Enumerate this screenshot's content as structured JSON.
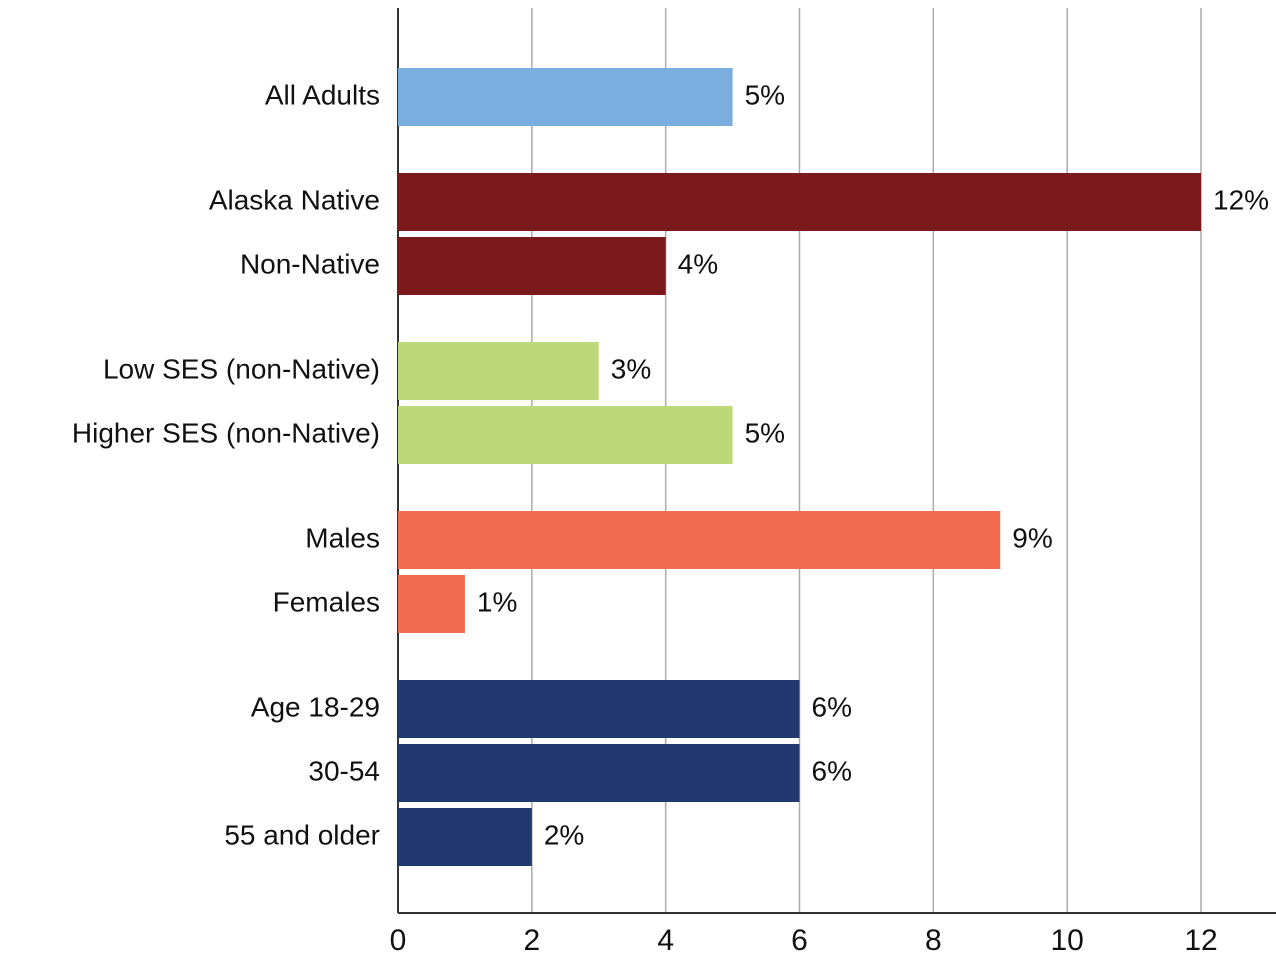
{
  "chart_data": {
    "type": "bar",
    "orientation": "horizontal",
    "categories": [
      "All Adults",
      "Alaska Native",
      "Non-Native",
      "Low SES (non-Native)",
      "Higher SES (non-Native)",
      "Males",
      "Females",
      "Age 18-29",
      "30-54",
      "55 and older"
    ],
    "values": [
      5,
      12,
      4,
      3,
      5,
      9,
      1,
      6,
      6,
      2
    ],
    "value_labels": [
      "5%",
      "12%",
      "4%",
      "3%",
      "5%",
      "9%",
      "1%",
      "6%",
      "6%",
      "2%"
    ],
    "colors": [
      "#7aaede",
      "#7a1a1c",
      "#7a1a1c",
      "#bdd878",
      "#bdd878",
      "#f06b50",
      "#f06b50",
      "#22376e",
      "#22376e",
      "#22376e"
    ],
    "xlim": [
      0,
      13.1
    ],
    "xticks": [
      0,
      2,
      4,
      6,
      8,
      10,
      12
    ],
    "grid": true
  }
}
